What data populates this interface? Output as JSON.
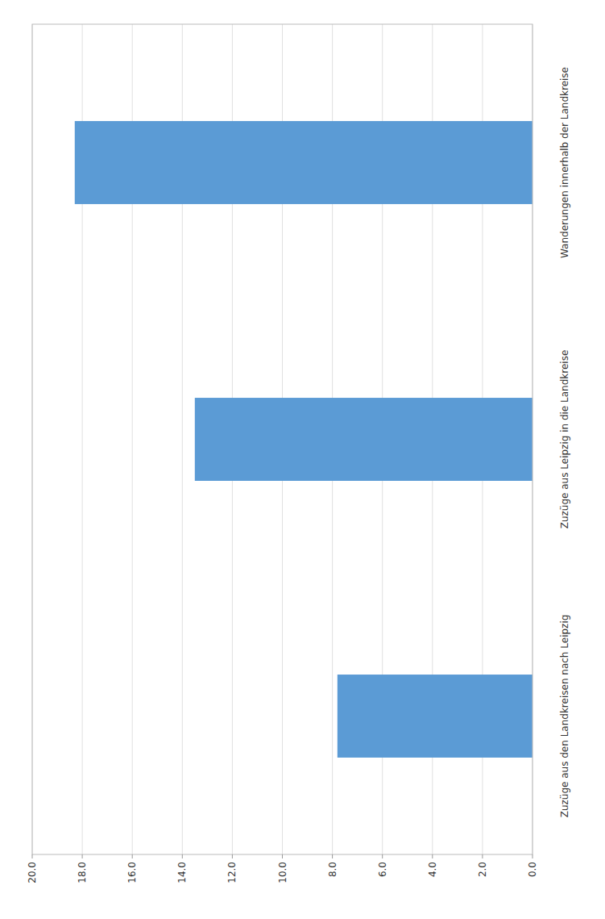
{
  "chart_data": {
    "type": "bar",
    "orientation": "horizontal",
    "categories": [
      "Zuzüge aus den Landkreisen nach Leipzig",
      "Zuzüge aus Leipzig in die Landkreise",
      "Wanderungen innerhalb der Landkreise"
    ],
    "values": [
      7.8,
      13.5,
      18.3
    ],
    "color": "#5b9bd5",
    "xlim": [
      20.0,
      0.0
    ],
    "xticks": [
      {
        "value": 0.0,
        "label": "0.0"
      },
      {
        "value": 2.0,
        "label": "2.0"
      },
      {
        "value": 4.0,
        "label": "4.0"
      },
      {
        "value": 6.0,
        "label": "6.0"
      },
      {
        "value": 8.0,
        "label": "8.0"
      },
      {
        "value": 10.0,
        "label": "10.0"
      },
      {
        "value": 12.0,
        "label": "12.0"
      },
      {
        "value": 14.0,
        "label": "14.0"
      },
      {
        "value": 16.0,
        "label": "16.0"
      },
      {
        "value": 18.0,
        "label": "18.0"
      },
      {
        "value": 20.0,
        "label": "20.0"
      }
    ],
    "grid": true
  }
}
